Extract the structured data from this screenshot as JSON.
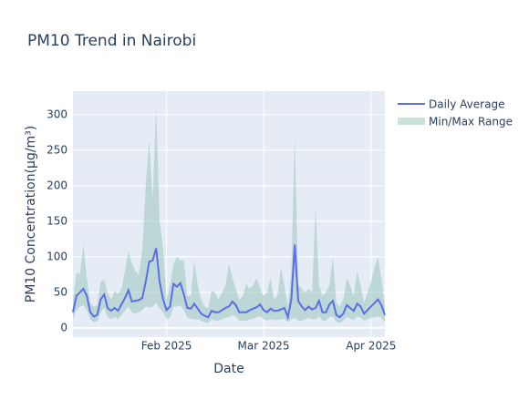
{
  "chart_data": {
    "type": "line",
    "title": "PM10 Trend in Nairobi",
    "x_label": "Date",
    "y_label": "PM10 Concentration(μg/m³)",
    "x": [
      "2025-01-05",
      "2025-01-06",
      "2025-01-07",
      "2025-01-08",
      "2025-01-09",
      "2025-01-10",
      "2025-01-11",
      "2025-01-12",
      "2025-01-13",
      "2025-01-14",
      "2025-01-15",
      "2025-01-16",
      "2025-01-17",
      "2025-01-18",
      "2025-01-19",
      "2025-01-20",
      "2025-01-21",
      "2025-01-22",
      "2025-01-23",
      "2025-01-24",
      "2025-01-25",
      "2025-01-26",
      "2025-01-27",
      "2025-01-28",
      "2025-01-29",
      "2025-01-30",
      "2025-01-31",
      "2025-02-01",
      "2025-02-02",
      "2025-02-03",
      "2025-02-04",
      "2025-02-05",
      "2025-02-06",
      "2025-02-07",
      "2025-02-08",
      "2025-02-09",
      "2025-02-10",
      "2025-02-11",
      "2025-02-12",
      "2025-02-13",
      "2025-02-14",
      "2025-02-15",
      "2025-02-16",
      "2025-02-17",
      "2025-02-18",
      "2025-02-19",
      "2025-02-20",
      "2025-02-21",
      "2025-02-22",
      "2025-02-23",
      "2025-02-24",
      "2025-02-25",
      "2025-02-26",
      "2025-02-27",
      "2025-02-28",
      "2025-03-01",
      "2025-03-02",
      "2025-03-03",
      "2025-03-04",
      "2025-03-05",
      "2025-03-06",
      "2025-03-07",
      "2025-03-08",
      "2025-03-09",
      "2025-03-10",
      "2025-03-11",
      "2025-03-12",
      "2025-03-13",
      "2025-03-14",
      "2025-03-15",
      "2025-03-16",
      "2025-03-17",
      "2025-03-18",
      "2025-03-19",
      "2025-03-20",
      "2025-03-21",
      "2025-03-22",
      "2025-03-23",
      "2025-03-24",
      "2025-03-25",
      "2025-03-26",
      "2025-03-27",
      "2025-03-28",
      "2025-03-29",
      "2025-03-30",
      "2025-03-31",
      "2025-04-01",
      "2025-04-02",
      "2025-04-03",
      "2025-04-04",
      "2025-04-05"
    ],
    "series": [
      {
        "name": "Daily Average",
        "color": "#5b6ee8",
        "values": [
          22,
          45,
          50,
          55,
          45,
          22,
          16,
          18,
          40,
          47,
          28,
          24,
          28,
          24,
          33,
          42,
          53,
          37,
          38,
          39,
          42,
          65,
          93,
          95,
          112,
          65,
          40,
          25,
          30,
          62,
          58,
          63,
          47,
          28,
          27,
          34,
          27,
          20,
          17,
          15,
          24,
          22,
          22,
          25,
          28,
          30,
          37,
          32,
          22,
          22,
          22,
          25,
          27,
          29,
          33,
          25,
          22,
          27,
          24,
          24,
          26,
          28,
          15,
          40,
          117,
          38,
          30,
          25,
          30,
          26,
          28,
          38,
          22,
          22,
          33,
          38,
          18,
          15,
          20,
          32,
          28,
          24,
          34,
          30,
          20,
          25,
          30,
          35,
          40,
          32,
          18
        ]
      },
      {
        "name": "Min/Max Range",
        "color": "rgba(140,190,178,0.45)",
        "low": [
          12,
          25,
          30,
          32,
          25,
          12,
          8,
          9,
          22,
          28,
          15,
          12,
          15,
          12,
          18,
          24,
          30,
          22,
          20,
          22,
          25,
          30,
          28,
          30,
          35,
          28,
          22,
          12,
          14,
          30,
          30,
          32,
          25,
          14,
          13,
          12,
          12,
          10,
          8,
          7,
          12,
          10,
          10,
          12,
          14,
          15,
          18,
          16,
          10,
          10,
          10,
          12,
          13,
          15,
          16,
          12,
          10,
          12,
          11,
          11,
          12,
          13,
          8,
          12,
          14,
          10,
          10,
          12,
          14,
          12,
          12,
          16,
          10,
          10,
          15,
          16,
          8,
          7,
          10,
          15,
          13,
          11,
          16,
          14,
          10,
          12,
          14,
          15,
          16,
          14,
          8
        ],
        "high": [
          40,
          78,
          75,
          117,
          70,
          35,
          30,
          32,
          65,
          68,
          50,
          40,
          52,
          48,
          55,
          80,
          108,
          90,
          80,
          75,
          110,
          200,
          265,
          180,
          312,
          150,
          112,
          40,
          60,
          90,
          100,
          95,
          95,
          45,
          45,
          95,
          60,
          40,
          30,
          28,
          52,
          50,
          40,
          50,
          60,
          90,
          70,
          55,
          40,
          45,
          62,
          55,
          60,
          70,
          55,
          45,
          50,
          70,
          40,
          45,
          85,
          60,
          30,
          80,
          270,
          60,
          55,
          50,
          55,
          50,
          170,
          60,
          45,
          50,
          60,
          100,
          35,
          30,
          40,
          70,
          60,
          45,
          80,
          60,
          35,
          50,
          65,
          85,
          100,
          70,
          30
        ]
      }
    ],
    "xlim": [
      "2025-01-05",
      "2025-04-05"
    ],
    "xticks": [
      {
        "value": "2025-02-01",
        "label": "Feb 2025"
      },
      {
        "value": "2025-03-01",
        "label": "Mar 2025"
      },
      {
        "value": "2025-04-01",
        "label": "Apr 2025"
      }
    ],
    "ylim": [
      -13,
      333
    ],
    "yticks": [
      0,
      50,
      100,
      150,
      200,
      250,
      300
    ],
    "grid": true,
    "legend": "right"
  }
}
